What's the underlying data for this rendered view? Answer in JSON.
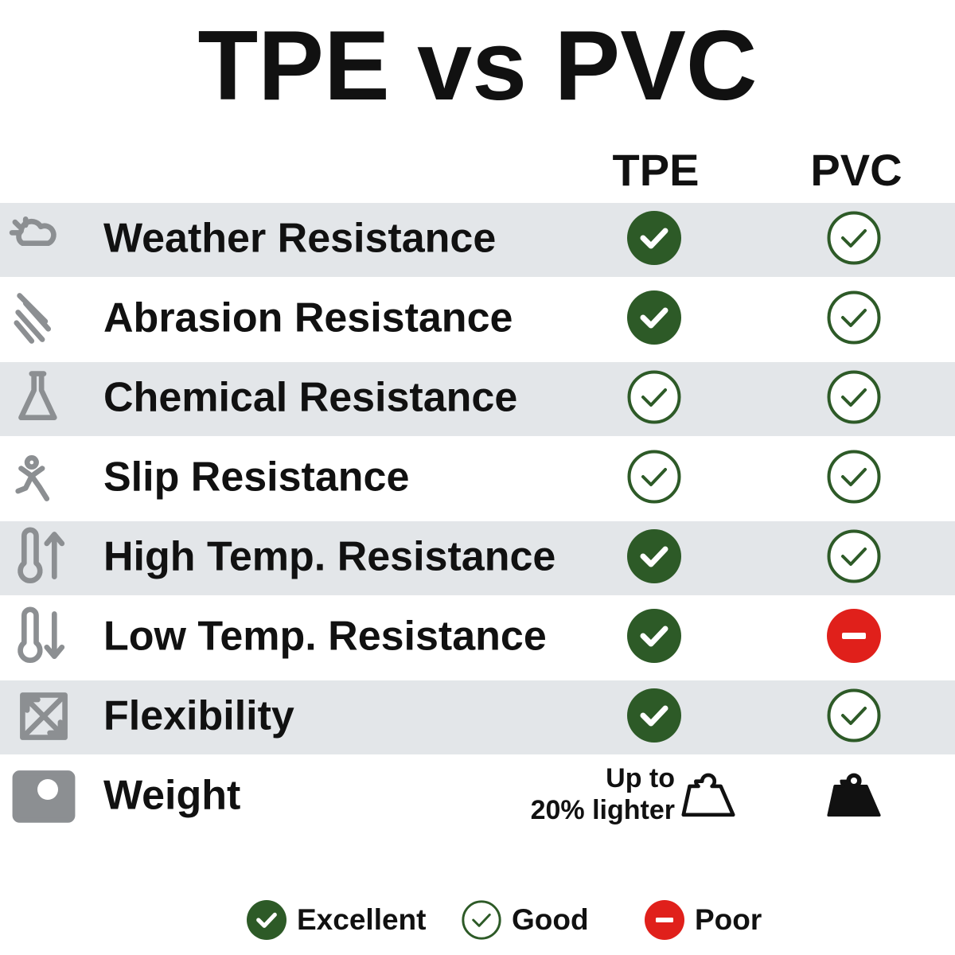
{
  "title": "TPE vs PVC",
  "columns": [
    "TPE",
    "PVC"
  ],
  "rows": [
    {
      "label": "Weather Resistance",
      "ratings": [
        "Excellent",
        "Good"
      ]
    },
    {
      "label": "Abrasion Resistance",
      "ratings": [
        "Excellent",
        "Good"
      ]
    },
    {
      "label": "Chemical Resistance",
      "ratings": [
        "Good",
        "Good"
      ]
    },
    {
      "label": "Slip Resistance",
      "ratings": [
        "Good",
        "Good"
      ]
    },
    {
      "label": "High Temp. Resistance",
      "ratings": [
        "Excellent",
        "Good"
      ]
    },
    {
      "label": "Low Temp. Resistance",
      "ratings": [
        "Excellent",
        "Poor"
      ]
    },
    {
      "label": "Flexibility",
      "ratings": [
        "Excellent",
        "Good"
      ]
    },
    {
      "label": "Weight",
      "note": [
        "Up to",
        "20% lighter"
      ]
    }
  ],
  "legend": [
    "Excellent",
    "Good",
    "Poor"
  ]
}
